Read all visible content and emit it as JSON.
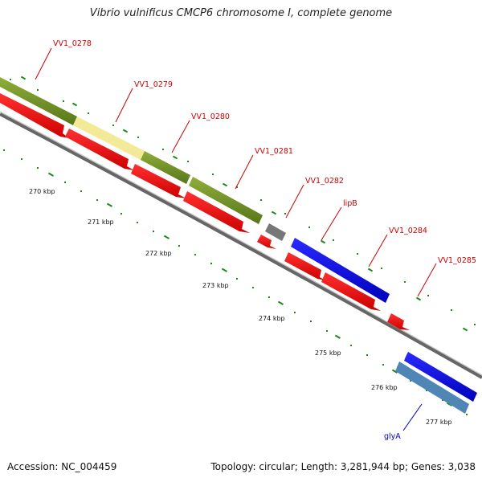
{
  "title": "Vibrio vulnificus CMCP6 chromosome I, complete genome",
  "footer": {
    "accession": "Accession: NC_004459",
    "stats": "Topology: circular; Length: 3,281,944 bp; Genes: 3,038"
  },
  "colors": {
    "olive": "#6e8e1f",
    "pale_yellow": "#f2ea96",
    "red": "#ee0000",
    "gray": "#777777",
    "blue": "#0000e6",
    "steel_blue": "#4f86b6",
    "tick_green": "#1a8a1a",
    "label_red": "#cc0000",
    "label_blue": "#0000cc"
  },
  "labels": [
    {
      "text": "VV1_0278",
      "color": "red"
    },
    {
      "text": "VV1_0279",
      "color": "red"
    },
    {
      "text": "VV1_0280",
      "color": "red"
    },
    {
      "text": "VV1_0281",
      "color": "red"
    },
    {
      "text": "VV1_0282",
      "color": "red"
    },
    {
      "text": "lipB",
      "color": "red"
    },
    {
      "text": "VV1_0284",
      "color": "red"
    },
    {
      "text": "VV1_0285",
      "color": "red"
    },
    {
      "text": "glyA",
      "color": "blue"
    }
  ],
  "kbp_labels": [
    "270 kbp",
    "271 kbp",
    "272 kbp",
    "273 kbp",
    "274 kbp",
    "275 kbp",
    "276 kbp",
    "277 kbp"
  ]
}
